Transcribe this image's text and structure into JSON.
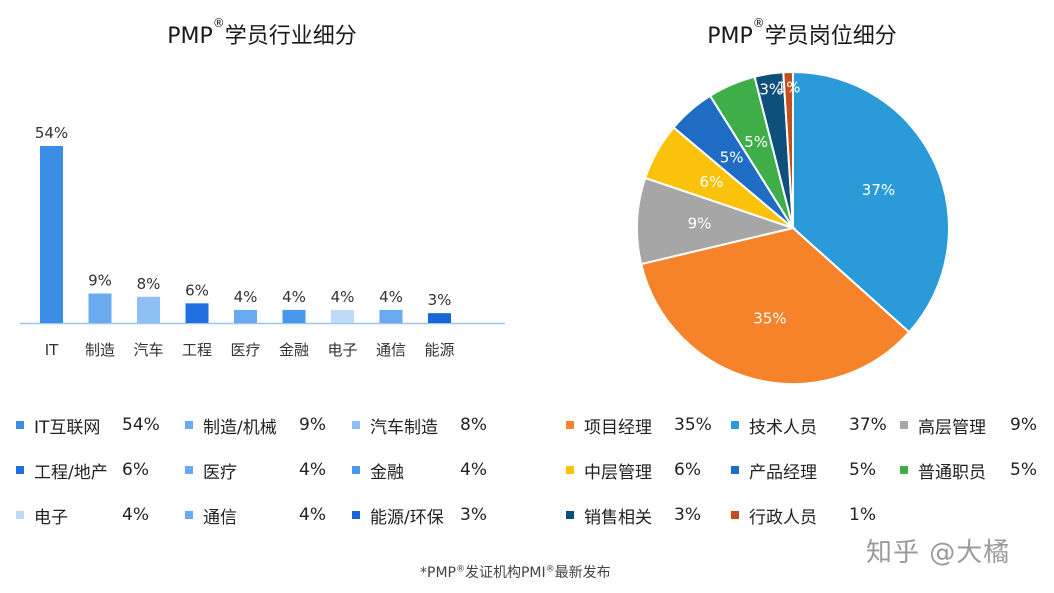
{
  "chart_data": [
    {
      "type": "bar",
      "title_main": "PMP",
      "title_mark": "®",
      "title_rest": "学员行业细分",
      "categories": [
        "IT",
        "制造",
        "汽车",
        "工程",
        "医疗",
        "金融",
        "电子",
        "通信",
        "能源"
      ],
      "values": [
        54,
        9,
        8,
        6,
        4,
        4,
        4,
        4,
        3
      ],
      "data_labels": [
        "54%",
        "9%",
        "8%",
        "6%",
        "4%",
        "4%",
        "4%",
        "4%",
        "3%"
      ],
      "colors": [
        "#3a8ee6",
        "#6aaaf0",
        "#8ec0f6",
        "#1f6fe0",
        "#6aaaf0",
        "#4a98ee",
        "#bcdaf9",
        "#6aaaf0",
        "#1a66d8"
      ],
      "ylim": [
        0,
        54
      ],
      "legend": [
        {
          "label": "IT互联网",
          "value": "54%",
          "color": "#3a8ee6"
        },
        {
          "label": "制造/机械",
          "value": "9%",
          "color": "#6aaaf0"
        },
        {
          "label": "汽车制造",
          "value": "8%",
          "color": "#8ec0f6"
        },
        {
          "label": "工程/地产",
          "value": "6%",
          "color": "#1f6fe0"
        },
        {
          "label": "医疗",
          "value": "4%",
          "color": "#6aaaf0"
        },
        {
          "label": "金融",
          "value": "4%",
          "color": "#4a98ee"
        },
        {
          "label": "电子",
          "value": "4%",
          "color": "#bcdaf9"
        },
        {
          "label": "通信",
          "value": "4%",
          "color": "#6aaaf0"
        },
        {
          "label": "能源/环保",
          "value": "3%",
          "color": "#1a66d8"
        }
      ]
    },
    {
      "type": "pie",
      "title_main": "PMP",
      "title_mark": "®",
      "title_rest": "学员岗位细分",
      "slices": [
        {
          "label": "技术人员",
          "value": 37,
          "display": "37%",
          "color": "#2a9bd8"
        },
        {
          "label": "项目经理",
          "value": 35,
          "display": "35%",
          "color": "#f6822a"
        },
        {
          "label": "高层管理",
          "value": 9,
          "display": "9%",
          "color": "#a6a6a6"
        },
        {
          "label": "中层管理",
          "value": 6,
          "display": "6%",
          "color": "#fbc20c"
        },
        {
          "label": "产品经理",
          "value": 5,
          "display": "5%",
          "color": "#1e6cc4"
        },
        {
          "label": "普通职员",
          "value": 5,
          "display": "5%",
          "color": "#3fae48"
        },
        {
          "label": "销售相关",
          "value": 3,
          "display": "3%",
          "color": "#0e4f7e"
        },
        {
          "label": "行政人员",
          "value": 1,
          "display": "1%",
          "color": "#c1501e"
        }
      ],
      "legend": [
        {
          "label": "项目经理",
          "value": "35%",
          "color": "#f6822a"
        },
        {
          "label": "技术人员",
          "value": "37%",
          "color": "#2a9bd8"
        },
        {
          "label": "高层管理",
          "value": "9%",
          "color": "#a6a6a6"
        },
        {
          "label": "中层管理",
          "value": "6%",
          "color": "#fbc20c"
        },
        {
          "label": "产品经理",
          "value": "5%",
          "color": "#1e6cc4"
        },
        {
          "label": "普通职员",
          "value": "5%",
          "color": "#3fae48"
        },
        {
          "label": "销售相关",
          "value": "3%",
          "color": "#0e4f7e"
        },
        {
          "label": "行政人员",
          "value": "1%",
          "color": "#c1501e"
        }
      ]
    }
  ],
  "footnote": {
    "prefix": "*PMP",
    "mark1": "®",
    "middle": "发证机构PMI",
    "mark2": "®",
    "suffix": "最新发布"
  },
  "watermark": "知乎 @大橘"
}
